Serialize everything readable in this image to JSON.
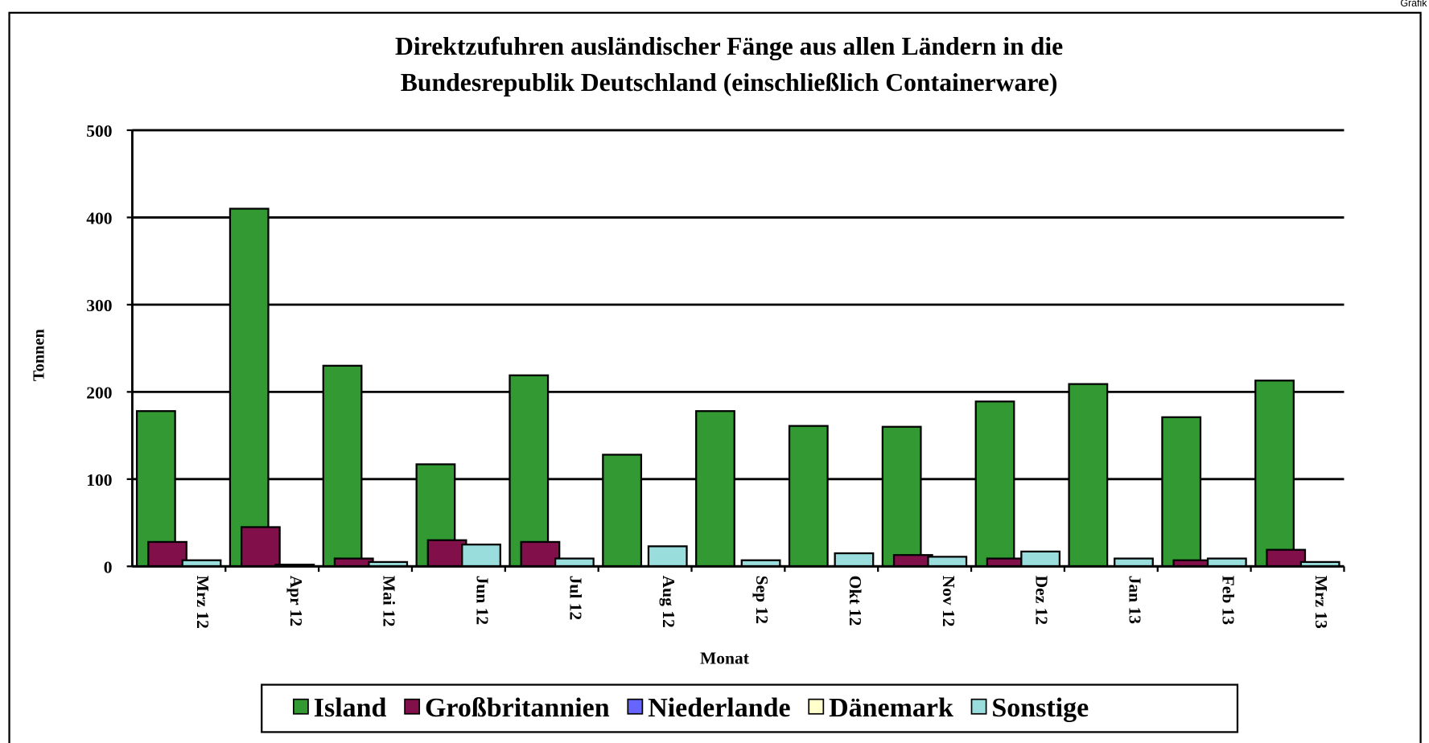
{
  "chart_data": {
    "type": "bar",
    "corner_label": "Grafik",
    "title": [
      "Direktzufuhren ausländischer Fänge aus allen Ländern in die",
      "Bundesrepublik Deutschland (einschließlich Containerware)"
    ],
    "x_label": "Monat",
    "y_label": "Tonnen",
    "categories": [
      "Mrz 12",
      "Apr 12",
      "Mai 12",
      "Jun 12",
      "Jul 12",
      "Aug 12",
      "Sep 12",
      "Okt 12",
      "Nov 12",
      "Dez 12",
      "Jan 13",
      "Feb 13",
      "Mrz 13"
    ],
    "series": [
      {
        "name": "Island",
        "color": "#339933",
        "values": [
          178,
          410,
          230,
          117,
          219,
          128,
          178,
          161,
          160,
          189,
          209,
          171,
          213
        ]
      },
      {
        "name": "Großbritannien",
        "color": "#800f4a",
        "values": [
          28,
          45,
          9,
          30,
          28,
          0,
          0,
          0,
          13,
          9,
          0,
          7,
          19
        ]
      },
      {
        "name": "Niederlande",
        "color": "#6666ff",
        "values": [
          0,
          0,
          0,
          0,
          0,
          0,
          0,
          0,
          0,
          0,
          0,
          0,
          0
        ]
      },
      {
        "name": "Dänemark",
        "color": "#ffffcc",
        "values": [
          0,
          0,
          0,
          0,
          0,
          0,
          0,
          0,
          0,
          0,
          0,
          0,
          0
        ]
      },
      {
        "name": "Sonstige",
        "color": "#99dddd",
        "values": [
          7,
          2,
          5,
          25,
          9,
          23,
          7,
          15,
          11,
          17,
          9,
          9,
          5
        ]
      }
    ],
    "ylim": [
      0,
      500
    ],
    "yticks": [
      0,
      100,
      200,
      300,
      400,
      500
    ],
    "grid": true,
    "legend": "bottom"
  }
}
